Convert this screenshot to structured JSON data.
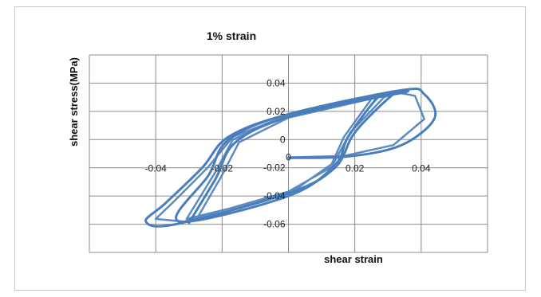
{
  "chart_data": {
    "type": "line",
    "title": "1% strain",
    "xlabel": "shear strain",
    "ylabel": "shear stress(MPa)",
    "xlim": [
      -0.06,
      0.06
    ],
    "ylim": [
      -0.08,
      0.06
    ],
    "grid": true,
    "legend": "none",
    "x_ticks": [
      -0.04,
      -0.02,
      0,
      0.02,
      0.04
    ],
    "x_tick_labels": [
      "-0.04",
      "-0.02",
      "0",
      "0.02",
      "0.04"
    ],
    "y_ticks": [
      0.04,
      0.02,
      0,
      -0.02,
      -0.04,
      -0.06
    ],
    "y_tick_labels": [
      "0.04",
      "0.02",
      "0",
      "-0.02",
      "-0.04",
      "-0.06"
    ],
    "line_color": "#4a7ebb",
    "series": [
      {
        "values": [
          {
            "x": 0.0,
            "y": -0.013
          },
          {
            "x": 0.018,
            "y": -0.012
          },
          {
            "x": 0.034,
            "y": -0.004
          },
          {
            "x": 0.044,
            "y": 0.015
          },
          {
            "x": 0.041,
            "y": 0.032
          },
          {
            "x": 0.034,
            "y": 0.035
          },
          {
            "x": 0.0,
            "y": 0.018
          },
          {
            "x": -0.018,
            "y": 0.002
          },
          {
            "x": -0.026,
            "y": -0.02
          },
          {
            "x": -0.037,
            "y": -0.045
          },
          {
            "x": -0.043,
            "y": -0.058
          },
          {
            "x": -0.034,
            "y": -0.06
          },
          {
            "x": 0.0,
            "y": -0.038
          },
          {
            "x": 0.014,
            "y": -0.02
          },
          {
            "x": 0.02,
            "y": 0.005
          },
          {
            "x": 0.031,
            "y": 0.031
          },
          {
            "x": 0.034,
            "y": 0.033
          },
          {
            "x": 0.0,
            "y": 0.018
          },
          {
            "x": -0.018,
            "y": 0.0
          },
          {
            "x": -0.024,
            "y": -0.025
          },
          {
            "x": -0.033,
            "y": -0.058
          },
          {
            "x": 0.0,
            "y": -0.04
          },
          {
            "x": 0.014,
            "y": -0.018
          },
          {
            "x": 0.018,
            "y": 0.002
          },
          {
            "x": 0.027,
            "y": 0.03
          },
          {
            "x": 0.031,
            "y": 0.032
          },
          {
            "x": 0.0,
            "y": 0.016
          },
          {
            "x": -0.016,
            "y": -0.002
          },
          {
            "x": -0.022,
            "y": -0.028
          },
          {
            "x": -0.03,
            "y": -0.059
          }
        ]
      }
    ]
  }
}
